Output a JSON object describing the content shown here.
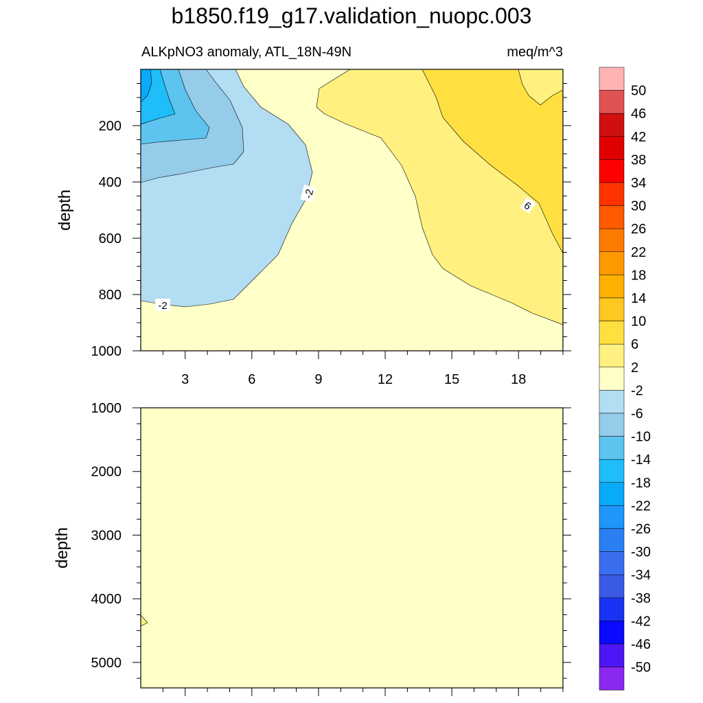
{
  "title": "b1850.f19_g17.validation_nuopc.003",
  "chart_data": [
    {
      "type": "heatmap",
      "subtype": "filled-contour",
      "panel": "upper",
      "subtitle_left": "ALKpNO3 anomaly, ATL_18N-49N",
      "subtitle_right": "meq/m^3",
      "ylabel": "depth",
      "xlim": [
        1,
        20
      ],
      "ylim": [
        1000,
        0
      ],
      "y_reversed": true,
      "xticks": [
        3,
        6,
        9,
        12,
        15,
        18
      ],
      "yticks": [
        200,
        400,
        600,
        800,
        1000
      ],
      "contour_labels": [
        "-2",
        "-2",
        "6"
      ],
      "regions": [
        {
          "range": "-2 to 2",
          "description": "background, most of the section below ~850 m and in the middle columns"
        },
        {
          "range": "-6 to -2",
          "description": "western columns 1-9, surface to ~850 m"
        },
        {
          "range": "-10 to -6",
          "description": "western columns 1-5, surface to ~400 m"
        },
        {
          "range": "-14 to -10",
          "description": "western columns 1-4, surface to ~260 m"
        },
        {
          "range": "-18 to -14",
          "description": "western columns 1-3, surface to ~190 m"
        },
        {
          "range": "-22 to -18",
          "description": "column 1-2, surface to ~120 m"
        },
        {
          "range": "2 to 6",
          "description": "eastern columns 10-20, surface to ~900 m"
        },
        {
          "range": "6 to 10",
          "description": "eastern columns 14-20, surface to ~650 m"
        }
      ]
    },
    {
      "type": "heatmap",
      "subtype": "filled-contour",
      "panel": "lower",
      "ylabel": "depth",
      "xlim": [
        1,
        20
      ],
      "ylim": [
        5400,
        1000
      ],
      "y_reversed": true,
      "yticks": [
        1000,
        2000,
        3000,
        4000,
        5000
      ],
      "regions": [
        {
          "range": "-2 to 2",
          "description": "entire panel"
        },
        {
          "range": "2 to 6",
          "description": "tiny patch at column 1 near 4350 m"
        }
      ]
    }
  ],
  "colorbar": {
    "labels": [
      "50",
      "46",
      "42",
      "38",
      "34",
      "30",
      "26",
      "22",
      "18",
      "14",
      "10",
      "6",
      "2",
      "-2",
      "-6",
      "-10",
      "-14",
      "-18",
      "-22",
      "-26",
      "-30",
      "-34",
      "-38",
      "-42",
      "-46",
      "-50"
    ],
    "colors": [
      "#ffb3b3",
      "#e05252",
      "#d01010",
      "#e00000",
      "#ff0000",
      "#ff3300",
      "#ff5a00",
      "#ff7a00",
      "#ff9900",
      "#ffb000",
      "#ffc820",
      "#ffe040",
      "#fff080",
      "#ffffc8",
      "#b3ddf2",
      "#94ccea",
      "#5dc3ef",
      "#1fbdf9",
      "#0aaafa",
      "#1e96fa",
      "#2a7ff5",
      "#3a6ef0",
      "#3a5ae6",
      "#1a32f2",
      "#0a0aff",
      "#4c16f5",
      "#8a28f0"
    ]
  }
}
